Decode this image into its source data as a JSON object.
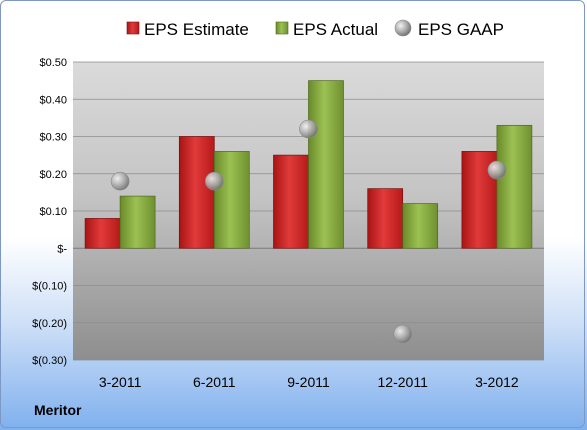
{
  "company": "Meritor",
  "colors": {
    "estimate": "#d42424",
    "actual": "#7fa23a",
    "gaap": "#a8a8a8"
  },
  "chart_data": {
    "type": "bar",
    "categories": [
      "3-2011",
      "6-2011",
      "9-2011",
      "12-2011",
      "3-2012"
    ],
    "series": [
      {
        "name": "EPS Estimate",
        "kind": "bar",
        "values": [
          0.08,
          0.3,
          0.25,
          0.16,
          0.26
        ]
      },
      {
        "name": "EPS Actual",
        "kind": "bar",
        "values": [
          0.14,
          0.26,
          0.45,
          0.12,
          0.33
        ]
      },
      {
        "name": "EPS GAAP",
        "kind": "scatter",
        "values": [
          0.18,
          0.18,
          0.32,
          -0.23,
          0.21
        ]
      }
    ],
    "yticks": [
      {
        "value": 0.5,
        "label": "$0.50"
      },
      {
        "value": 0.4,
        "label": "$0.40"
      },
      {
        "value": 0.3,
        "label": "$0.30"
      },
      {
        "value": 0.2,
        "label": "$0.20"
      },
      {
        "value": 0.1,
        "label": "$0.10"
      },
      {
        "value": 0.0,
        "label": "$-"
      },
      {
        "value": -0.1,
        "label": "$(0.10)"
      },
      {
        "value": -0.2,
        "label": "$(0.20)"
      },
      {
        "value": -0.3,
        "label": "$(0.30)"
      }
    ],
    "ylim": [
      -0.3,
      0.5
    ],
    "grid": true,
    "legend": "top"
  }
}
